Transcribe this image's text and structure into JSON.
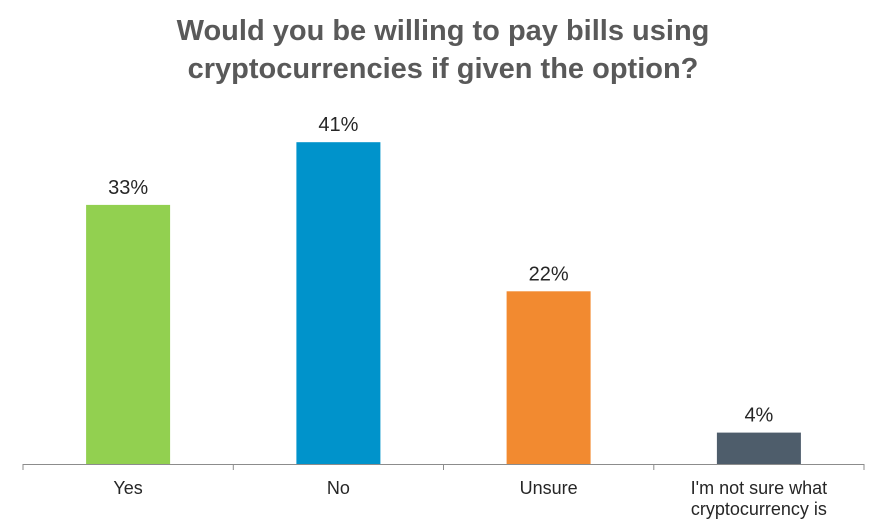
{
  "chart_data": {
    "type": "bar",
    "title_lines": [
      "Would you be willing to pay bills using",
      "cryptocurrencies if given the option?"
    ],
    "categories": [
      [
        "Yes"
      ],
      [
        "No"
      ],
      [
        "Unsure"
      ],
      [
        "I'm not sure what",
        "cryptocurrency is"
      ]
    ],
    "values": [
      33,
      41,
      22,
      4
    ],
    "value_labels": [
      "33%",
      "41%",
      "22%",
      "4%"
    ],
    "colors": [
      "#92d050",
      "#0093cb",
      "#f28a30",
      "#4e5d6b"
    ],
    "ylim": [
      0,
      45
    ],
    "grid": false,
    "legend": "none"
  }
}
